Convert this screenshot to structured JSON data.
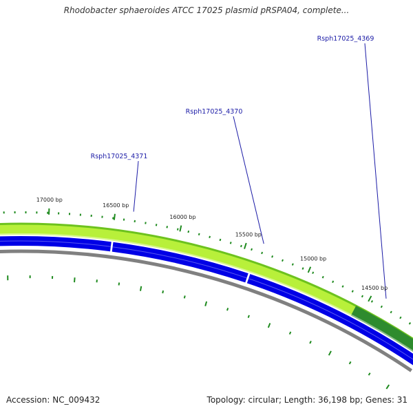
{
  "title": "Rhodobacter sphaeroides ATCC 17025 plasmid pRSPA04, complete...",
  "footer": {
    "accession": "Accession: NC_009432",
    "summary": "Topology: circular; Length: 36,198 bp; Genes: 31"
  },
  "genes": [
    {
      "name": "Rsph17025_4369"
    },
    {
      "name": "Rsph17025_4370"
    },
    {
      "name": "Rsph17025_4371"
    }
  ],
  "ticks": [
    {
      "label": "14500 bp"
    },
    {
      "label": "15000 bp"
    },
    {
      "label": "15500 bp"
    },
    {
      "label": "16000 bp"
    },
    {
      "label": "16500 bp"
    },
    {
      "label": "17000 bp"
    }
  ],
  "colors": {
    "forward_gene": "#0000e6",
    "cds_light": "#b8f03a",
    "cds_dark": "#6dc21e",
    "cds_darkest": "#2e8b2e",
    "backbone": "#808080",
    "tick": "#1e8a1e",
    "label": "#1a1aa6"
  }
}
